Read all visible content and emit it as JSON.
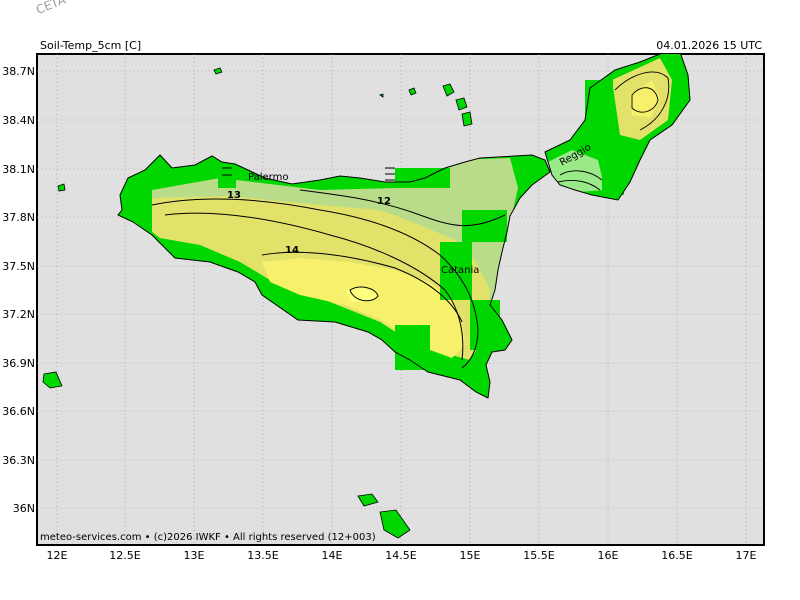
{
  "watermark": "CETA - In",
  "map": {
    "title": "Soil-Temp_5cm [C]",
    "valid_time": "04.01.2026 15 UTC",
    "footer": "meteo-services.com • (c)2026 IWKF • All rights reserved (12+003)",
    "lon_labels": [
      "12E",
      "12.5E",
      "13E",
      "13.5E",
      "14E",
      "14.5E",
      "15E",
      "15.5E",
      "16E",
      "16.5E",
      "17E"
    ],
    "lat_labels": [
      "38.7N",
      "38.4N",
      "38.1N",
      "37.8N",
      "37.5N",
      "37.2N",
      "36.9N",
      "36.6N",
      "36.3N",
      "36N"
    ],
    "cities": [
      "Palermo",
      "Catania",
      "Reggio"
    ],
    "contour_labels": [
      "13",
      "12",
      "14"
    ],
    "colors": {
      "sea": "#e0e0e0",
      "land_no_data": "#00d700",
      "band_11": "#9aea8a",
      "band_12": "#b8dc8a",
      "band_13": "#e2e26a",
      "band_14": "#f6f06a",
      "band_15": "#ffff80"
    }
  }
}
